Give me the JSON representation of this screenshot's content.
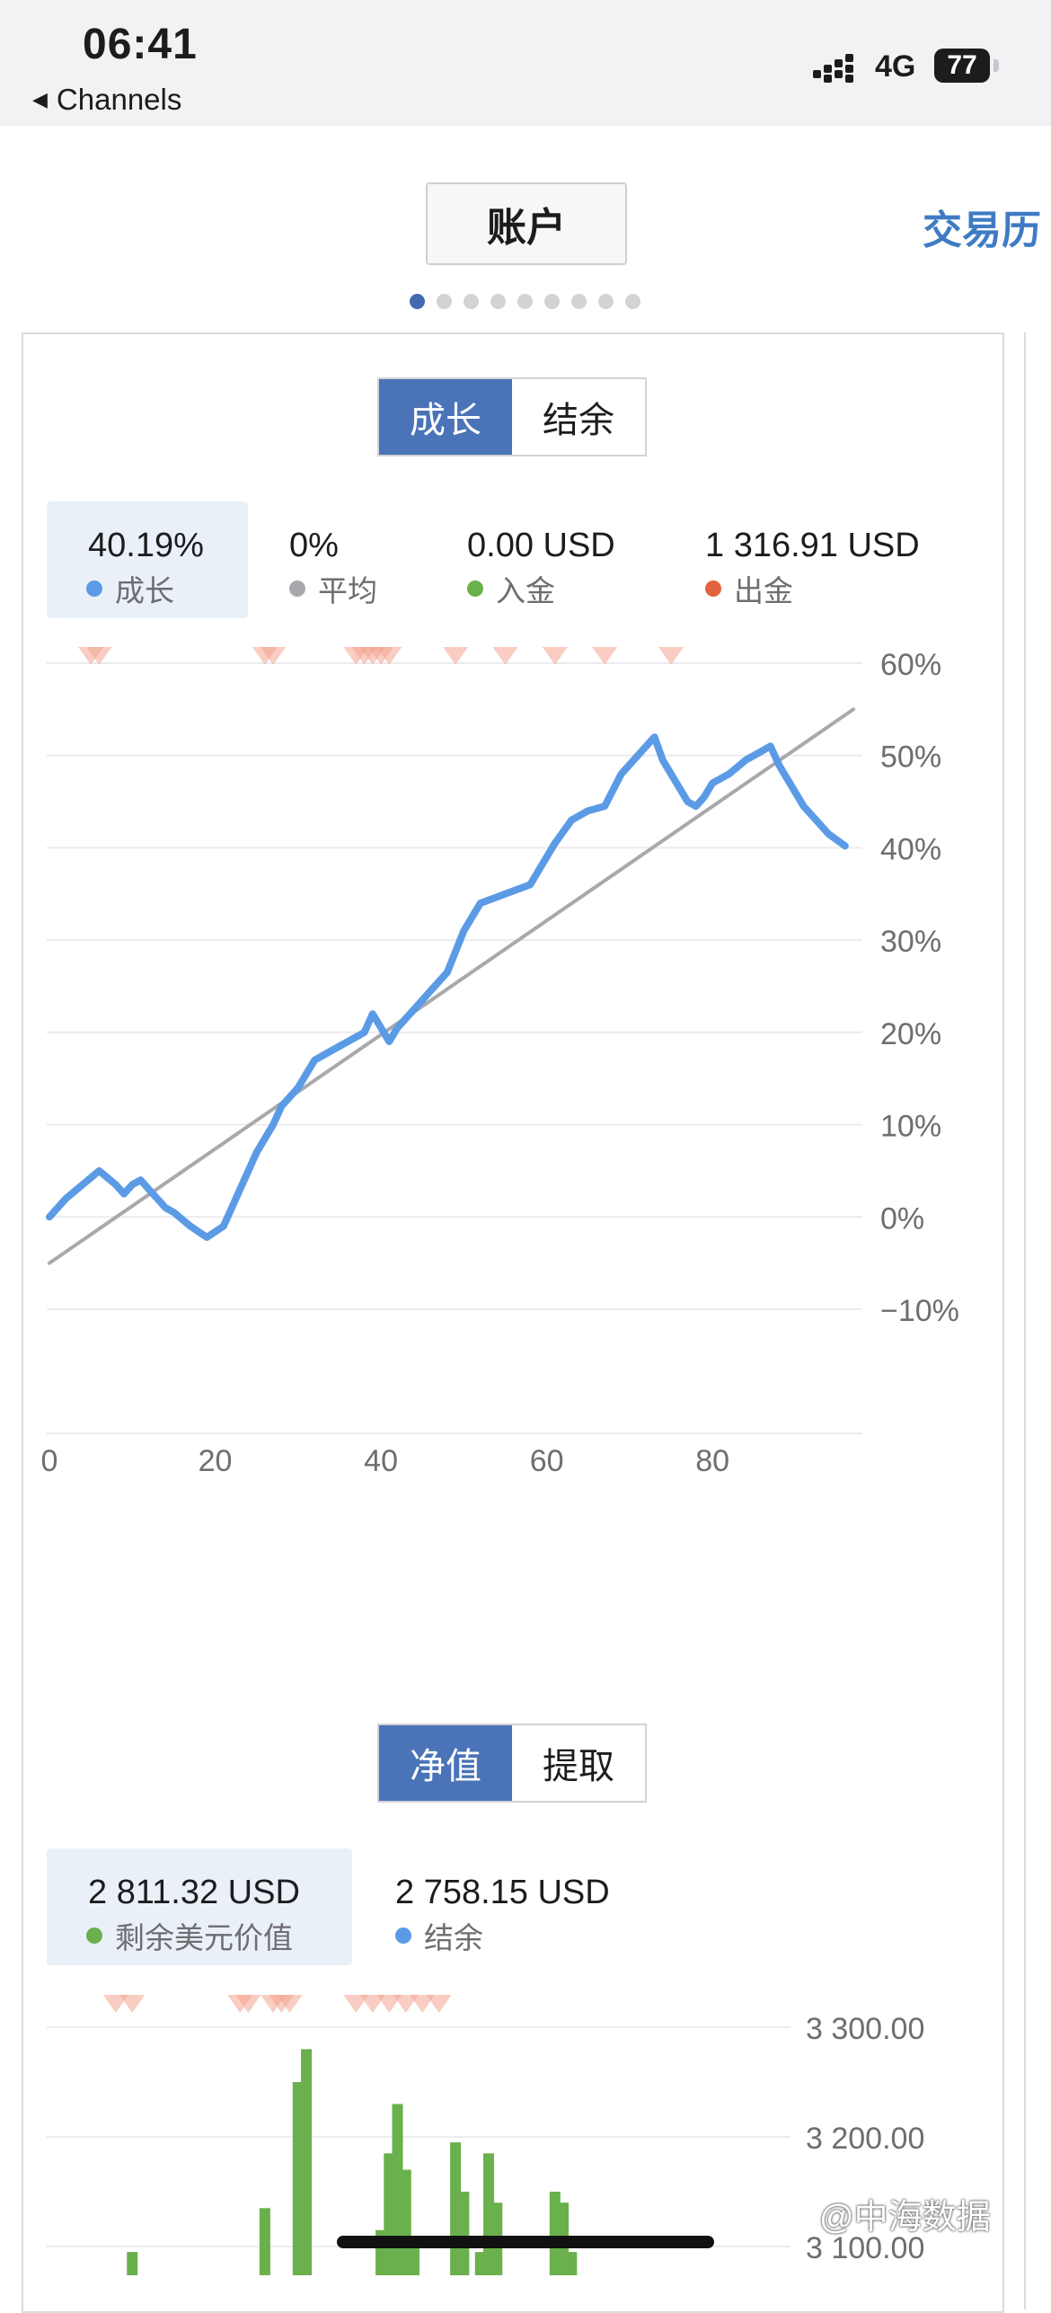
{
  "status_bar": {
    "time": "06:41",
    "back_label": "Channels",
    "network": "4G",
    "battery": "77"
  },
  "tabs": {
    "account": "账户",
    "history": "交易历"
  },
  "pager": {
    "count": 9,
    "active": 0
  },
  "growth_toggle": {
    "active": "成长",
    "inactive": "结余"
  },
  "growth_stats": [
    {
      "value": "40.19%",
      "label": "成长",
      "color": "#5b9be6"
    },
    {
      "value": "0%",
      "label": "平均",
      "color": "#a9a9ad"
    },
    {
      "value": "0.00 USD",
      "label": "入金",
      "color": "#6ab04c"
    },
    {
      "value": "1 316.91 USD",
      "label": "出金",
      "color": "#e0633e"
    }
  ],
  "equity_toggle": {
    "active": "净值",
    "inactive": "提取"
  },
  "equity_stats": [
    {
      "value": "2 811.32 USD",
      "label": "剩余美元价值",
      "color": "#6ab04c"
    },
    {
      "value": "2 758.15 USD",
      "label": "结余",
      "color": "#5b9be6"
    }
  ],
  "watermark": "@中海数据",
  "chart_data": [
    {
      "type": "line",
      "x_ticks": [
        "0",
        "20",
        "40",
        "60",
        "80"
      ],
      "y_ticks": [
        "60%",
        "50%",
        "40%",
        "30%",
        "20%",
        "10%",
        "0%",
        "−10%"
      ],
      "xlim": [
        0,
        97
      ],
      "ylim": [
        -10,
        60
      ],
      "series": [
        {
          "color": "#5b9be6",
          "x": [
            0,
            2,
            4,
            6,
            8,
            9,
            10,
            11,
            12,
            14,
            15,
            17,
            19,
            21,
            23,
            25,
            27,
            28,
            29,
            30,
            31,
            32,
            34,
            36,
            38,
            39,
            40,
            41,
            42,
            44,
            46,
            48,
            50,
            52,
            55,
            58,
            61,
            63,
            65,
            67,
            69,
            71,
            72,
            73,
            74,
            75,
            77,
            78,
            79,
            80,
            82,
            84,
            86,
            87,
            88,
            89,
            91,
            92,
            94,
            96
          ],
          "y": [
            0,
            2,
            3.5,
            5,
            3.5,
            2.5,
            3.5,
            4,
            3,
            1,
            0.5,
            -1,
            -2.2,
            -1,
            3,
            7,
            10,
            12,
            13,
            14,
            15.5,
            17,
            18,
            19,
            20,
            22,
            20.5,
            19,
            20.5,
            22.5,
            24.5,
            26.5,
            31,
            34,
            35,
            36,
            40.5,
            43,
            44,
            44.5,
            48,
            50,
            51,
            52,
            49.5,
            48,
            45,
            44.5,
            45.5,
            47,
            48,
            49.5,
            50.5,
            51,
            49,
            47.5,
            44.5,
            43.5,
            41.5,
            40.2
          ]
        },
        {
          "color": "#a9a9ad",
          "x": [
            0,
            97
          ],
          "y": [
            -5,
            55
          ]
        }
      ],
      "markers_x": [
        5,
        6,
        26,
        27,
        37,
        38,
        39,
        40,
        41,
        49,
        55,
        61,
        67,
        75
      ]
    },
    {
      "type": "bar",
      "y_ticks": [
        "3 300.00",
        "3 200.00",
        "3 100.00"
      ],
      "ylim": [
        3080,
        3300
      ],
      "color": "#6ab04c",
      "x": [
        10,
        26,
        30,
        31,
        40,
        41,
        42,
        43,
        44,
        49,
        50,
        52,
        53,
        54,
        61,
        62,
        63
      ],
      "values": [
        3095,
        3135,
        3250,
        3280,
        3115,
        3185,
        3230,
        3170,
        3105,
        3195,
        3150,
        3095,
        3185,
        3140,
        3150,
        3140,
        3095
      ],
      "markers_x": [
        8,
        10,
        23,
        24,
        27,
        28,
        29,
        37,
        39,
        41,
        43,
        45,
        47
      ]
    }
  ]
}
